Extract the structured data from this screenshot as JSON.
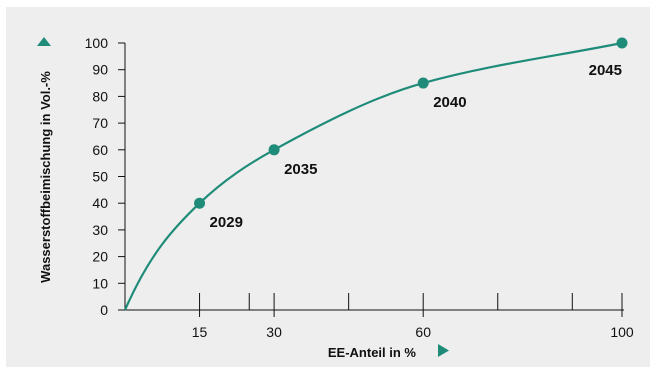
{
  "colors": {
    "accent": "#1f8c7a",
    "background": "#eeeeee",
    "axis": "#111111"
  },
  "icons": {
    "y_axis_marker": "triangle-up-icon",
    "x_axis_marker": "triangle-right-icon"
  },
  "chart_data": {
    "type": "line",
    "title": "",
    "xlabel": "EE-Anteil in %",
    "ylabel": "Wasserstoffbeimischung in Vol.-%",
    "xlim": [
      0,
      100
    ],
    "ylim": [
      0,
      100
    ],
    "y_ticks": [
      0,
      10,
      20,
      30,
      40,
      50,
      60,
      70,
      80,
      90,
      100
    ],
    "x_tick_labels": [
      {
        "value": 15,
        "label": "15"
      },
      {
        "value": 30,
        "label": "30"
      },
      {
        "value": 60,
        "label": "60"
      },
      {
        "value": 100,
        "label": "100"
      }
    ],
    "x_minor_ticks": [
      25,
      45,
      75,
      90
    ],
    "grid": false,
    "legend": "none",
    "series": [
      {
        "points": [
          {
            "x": 0,
            "y": 0
          },
          {
            "x": 15,
            "y": 40,
            "label": "2029"
          },
          {
            "x": 30,
            "y": 60,
            "label": "2035"
          },
          {
            "x": 60,
            "y": 85,
            "label": "2040"
          },
          {
            "x": 100,
            "y": 100,
            "label": "2045"
          }
        ]
      }
    ]
  }
}
